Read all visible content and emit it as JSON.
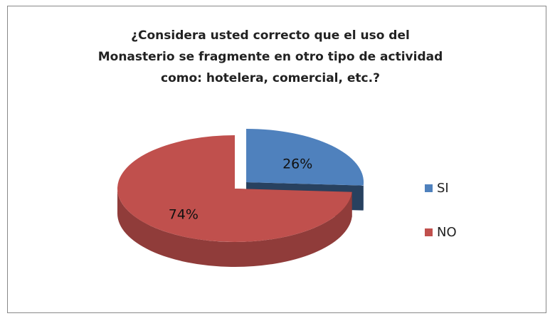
{
  "chart_data": {
    "type": "pie3d",
    "title": [
      "¿Considera usted correcto que el uso del",
      "Monasterio se fragmente en otro tipo de actividad",
      "como: hotelera, comercial, etc.?"
    ],
    "categories": [
      "SI",
      "NO"
    ],
    "values": [
      26,
      74
    ],
    "value_labels": [
      "26%",
      "74%"
    ],
    "colors": [
      "#4f81bd",
      "#c0504d"
    ],
    "legend": "right"
  }
}
